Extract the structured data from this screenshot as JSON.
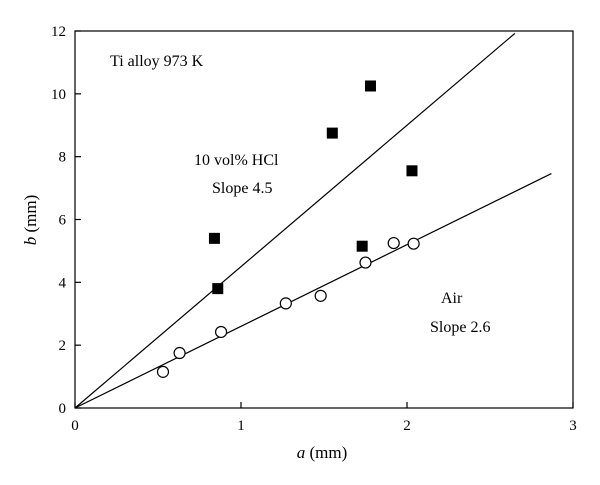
{
  "chart_data": {
    "type": "scatter",
    "xlabel": {
      "var": "a",
      "unit": "(mm)"
    },
    "ylabel": {
      "var": "b",
      "unit": "(mm)"
    },
    "xlim": [
      0,
      3
    ],
    "ylim": [
      0,
      12
    ],
    "xticks": [
      0,
      1,
      2,
      3
    ],
    "yticks": [
      0,
      2,
      4,
      6,
      8,
      10,
      12
    ],
    "grid": false,
    "series": [
      {
        "marker": "filled-square",
        "points": [
          {
            "x": 0.84,
            "y": 5.4
          },
          {
            "x": 0.86,
            "y": 3.8
          },
          {
            "x": 1.55,
            "y": 8.75
          },
          {
            "x": 1.73,
            "y": 5.15
          },
          {
            "x": 1.78,
            "y": 10.25
          },
          {
            "x": 2.03,
            "y": 7.55
          }
        ],
        "fit_line": {
          "slope": 4.5,
          "x_start": 0,
          "x_end": 2.65
        }
      },
      {
        "marker": "open-circle",
        "points": [
          {
            "x": 0.53,
            "y": 1.15
          },
          {
            "x": 0.63,
            "y": 1.75
          },
          {
            "x": 0.88,
            "y": 2.42
          },
          {
            "x": 1.27,
            "y": 3.33
          },
          {
            "x": 1.48,
            "y": 3.57
          },
          {
            "x": 1.75,
            "y": 4.63
          },
          {
            "x": 1.92,
            "y": 5.25
          },
          {
            "x": 2.04,
            "y": 5.23
          }
        ],
        "fit_line": {
          "slope": 2.6,
          "x_start": 0,
          "x_end": 2.87
        }
      }
    ],
    "annotations": [
      {
        "id": "title-note",
        "text": "Ti alloy 973 K"
      },
      {
        "id": "hcl-label",
        "text": "10 vol% HCl"
      },
      {
        "id": "hcl-slope",
        "text": "Slope 4.5"
      },
      {
        "id": "air-label",
        "text": "Air"
      },
      {
        "id": "air-slope",
        "text": "Slope 2.6"
      }
    ]
  }
}
